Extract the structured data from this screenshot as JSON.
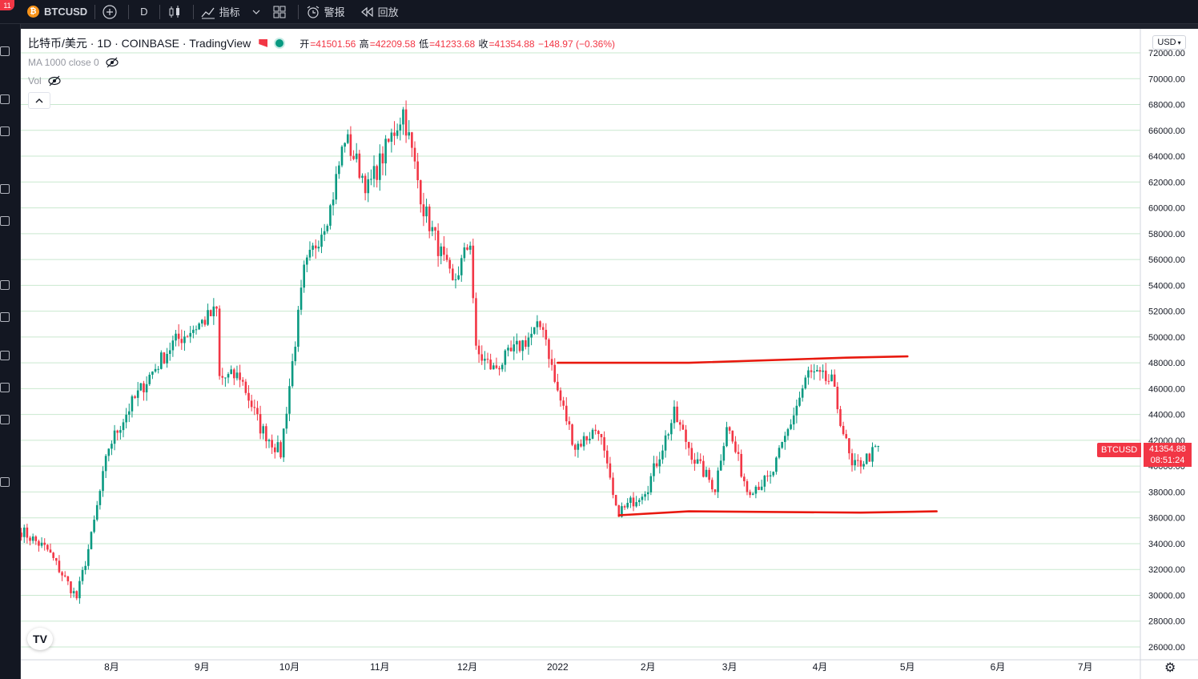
{
  "toolbar": {
    "notification_count": "11",
    "symbol": "BTCUSD",
    "symbol_badge": "₿",
    "interval": "D",
    "indicators_label": "指标",
    "alert_label": "警报",
    "replay_label": "回放"
  },
  "legend": {
    "title": "比特币/美元 · 1D · COINBASE · TradingView",
    "open_label": "开",
    "open": "=41501.56",
    "high_label": "高",
    "high": "=42209.58",
    "low_label": "低",
    "low": "=41233.68",
    "close_label": "收",
    "close": "=41354.88",
    "change": "−148.97 (−0.36%)",
    "ma_label": "MA 1000 close 0",
    "vol_label": "Vol"
  },
  "price_axis": {
    "currency": "USD",
    "ticks": [
      "72000.00",
      "70000.00",
      "68000.00",
      "66000.00",
      "64000.00",
      "62000.00",
      "60000.00",
      "58000.00",
      "56000.00",
      "54000.00",
      "52000.00",
      "50000.00",
      "48000.00",
      "46000.00",
      "44000.00",
      "42000.00",
      "40000.00",
      "38000.00",
      "36000.00",
      "34000.00",
      "32000.00",
      "30000.00",
      "28000.00",
      "26000.00"
    ],
    "symbol_tag": "BTCUSD",
    "last_price": "41354.88",
    "countdown": "08:51:24"
  },
  "time_axis": {
    "ticks": [
      "8月",
      "9月",
      "10月",
      "11月",
      "12月",
      "2022",
      "2月",
      "3月",
      "4月",
      "5月",
      "6月",
      "7月"
    ]
  },
  "colors": {
    "up": "#089981",
    "down": "#f23645",
    "drawn_line": "#e8190e",
    "grid": "#c9e8cf"
  },
  "chart_data": {
    "type": "candlestick",
    "ylim": [
      25500,
      72500
    ],
    "anchors": [
      [
        "2021-07-01",
        35000
      ],
      [
        "2021-07-10",
        33500
      ],
      [
        "2021-07-20",
        29800
      ],
      [
        "2021-07-25",
        34500
      ],
      [
        "2021-07-31",
        41500
      ],
      [
        "2021-08-07",
        44500
      ],
      [
        "2021-08-14",
        47000
      ],
      [
        "2021-08-22",
        49500
      ],
      [
        "2021-09-06",
        52000
      ],
      [
        "2021-09-07",
        46800
      ],
      [
        "2021-09-14",
        47000
      ],
      [
        "2021-09-21",
        43000
      ],
      [
        "2021-09-28",
        41000
      ],
      [
        "2021-10-06",
        55000
      ],
      [
        "2021-10-15",
        60000
      ],
      [
        "2021-10-20",
        65500
      ],
      [
        "2021-10-28",
        61500
      ],
      [
        "2021-11-09",
        67500
      ],
      [
        "2021-11-16",
        60000
      ],
      [
        "2021-11-26",
        54000
      ],
      [
        "2021-12-02",
        57500
      ],
      [
        "2021-12-04",
        48800
      ],
      [
        "2021-12-10",
        47500
      ],
      [
        "2021-12-15",
        48500
      ],
      [
        "2021-12-27",
        51000
      ],
      [
        "2021-12-31",
        46500
      ],
      [
        "2022-01-07",
        41500
      ],
      [
        "2022-01-15",
        43000
      ],
      [
        "2022-01-21",
        36500
      ],
      [
        "2022-01-24",
        36700
      ],
      [
        "2022-02-01",
        38500
      ],
      [
        "2022-02-10",
        44000
      ],
      [
        "2022-02-17",
        40500
      ],
      [
        "2022-02-24",
        38300
      ],
      [
        "2022-02-28",
        43300
      ],
      [
        "2022-03-07",
        38200
      ],
      [
        "2022-03-15",
        39000
      ],
      [
        "2022-03-28",
        47200
      ],
      [
        "2022-04-05",
        46500
      ],
      [
        "2022-04-12",
        39800
      ],
      [
        "2022-04-18",
        40800
      ],
      [
        "2022-04-21",
        41400
      ]
    ],
    "drawn_lines": [
      {
        "name": "resistance",
        "points": [
          [
            "2022-01-01",
            48000
          ],
          [
            "2022-02-15",
            48000
          ],
          [
            "2022-04-10",
            48400
          ],
          [
            "2022-05-01",
            48500
          ]
        ]
      },
      {
        "name": "support",
        "points": [
          [
            "2022-01-22",
            36200
          ],
          [
            "2022-02-15",
            36500
          ],
          [
            "2022-04-15",
            36400
          ],
          [
            "2022-05-11",
            36500
          ]
        ]
      }
    ]
  }
}
